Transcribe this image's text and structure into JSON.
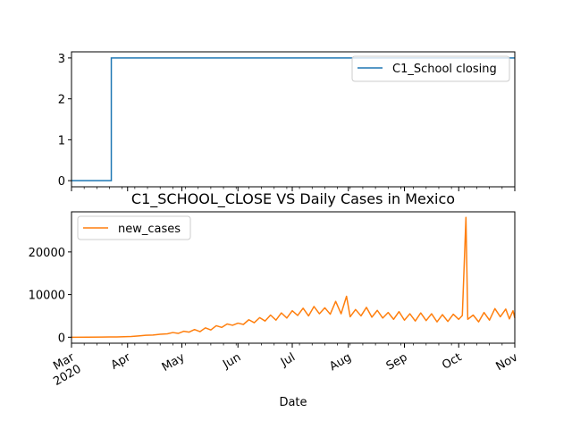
{
  "chart_data": [
    {
      "type": "line",
      "title": "",
      "xlabel": "",
      "ylabel": "",
      "xlim": [
        "2020-03-01",
        "2020-11-01"
      ],
      "ylim": [
        -0.15,
        3.15
      ],
      "yticks": [
        0,
        1,
        2,
        3
      ],
      "grid": false,
      "legend_position": "top-right",
      "series": [
        {
          "name": "C1_School closing",
          "color": "#1f77b4",
          "points": [
            [
              "2020-03-01",
              0
            ],
            [
              "2020-03-23",
              0
            ],
            [
              "2020-03-23",
              3
            ],
            [
              "2020-11-01",
              3
            ]
          ]
        }
      ]
    },
    {
      "type": "line",
      "title": "C1_SCHOOL_CLOSE VS Daily Cases in Mexico",
      "xlabel": "Date",
      "ylabel": "",
      "xlim": [
        "2020-03-01",
        "2020-11-01"
      ],
      "ylim": [
        -1400,
        29400
      ],
      "yticks": [
        0,
        10000,
        20000
      ],
      "ytick_labels": [
        "0",
        "10000",
        "20000"
      ],
      "xticks": [
        "2020-03-01",
        "2020-04-01",
        "2020-05-01",
        "2020-06-01",
        "2020-07-01",
        "2020-08-01",
        "2020-09-01",
        "2020-10-01",
        "2020-11-01"
      ],
      "xtick_labels": [
        "Mar\n2020",
        "Apr",
        "May",
        "Jun",
        "Jul",
        "Aug",
        "Sep",
        "Oct",
        "Nov"
      ],
      "grid": false,
      "legend_position": "top-left",
      "series": [
        {
          "name": "new_cases",
          "color": "#ff7f0e",
          "points": [
            [
              "2020-03-01",
              0
            ],
            [
              "2020-03-10",
              3
            ],
            [
              "2020-03-18",
              30
            ],
            [
              "2020-03-22",
              60
            ],
            [
              "2020-03-26",
              80
            ],
            [
              "2020-03-30",
              120
            ],
            [
              "2020-04-03",
              180
            ],
            [
              "2020-04-07",
              300
            ],
            [
              "2020-04-11",
              450
            ],
            [
              "2020-04-15",
              500
            ],
            [
              "2020-04-19",
              700
            ],
            [
              "2020-04-23",
              800
            ],
            [
              "2020-04-26",
              1100
            ],
            [
              "2020-04-29",
              900
            ],
            [
              "2020-05-02",
              1400
            ],
            [
              "2020-05-05",
              1200
            ],
            [
              "2020-05-08",
              1800
            ],
            [
              "2020-05-11",
              1300
            ],
            [
              "2020-05-14",
              2200
            ],
            [
              "2020-05-17",
              1700
            ],
            [
              "2020-05-20",
              2700
            ],
            [
              "2020-05-23",
              2300
            ],
            [
              "2020-05-26",
              3100
            ],
            [
              "2020-05-29",
              2800
            ],
            [
              "2020-06-01",
              3300
            ],
            [
              "2020-06-04",
              3000
            ],
            [
              "2020-06-07",
              4100
            ],
            [
              "2020-06-10",
              3400
            ],
            [
              "2020-06-13",
              4600
            ],
            [
              "2020-06-16",
              3800
            ],
            [
              "2020-06-19",
              5200
            ],
            [
              "2020-06-22",
              4000
            ],
            [
              "2020-06-25",
              5700
            ],
            [
              "2020-06-28",
              4500
            ],
            [
              "2020-07-01",
              6200
            ],
            [
              "2020-07-04",
              5100
            ],
            [
              "2020-07-07",
              6800
            ],
            [
              "2020-07-10",
              5000
            ],
            [
              "2020-07-13",
              7200
            ],
            [
              "2020-07-16",
              5500
            ],
            [
              "2020-07-19",
              6900
            ],
            [
              "2020-07-22",
              5400
            ],
            [
              "2020-07-25",
              8400
            ],
            [
              "2020-07-28",
              5500
            ],
            [
              "2020-07-31",
              9600
            ],
            [
              "2020-08-02",
              4800
            ],
            [
              "2020-08-05",
              6500
            ],
            [
              "2020-08-08",
              5000
            ],
            [
              "2020-08-11",
              7000
            ],
            [
              "2020-08-14",
              4700
            ],
            [
              "2020-08-17",
              6300
            ],
            [
              "2020-08-20",
              4500
            ],
            [
              "2020-08-23",
              5800
            ],
            [
              "2020-08-26",
              4200
            ],
            [
              "2020-08-29",
              6000
            ],
            [
              "2020-09-01",
              4000
            ],
            [
              "2020-09-04",
              5500
            ],
            [
              "2020-09-07",
              3800
            ],
            [
              "2020-09-10",
              5700
            ],
            [
              "2020-09-13",
              3900
            ],
            [
              "2020-09-16",
              5500
            ],
            [
              "2020-09-19",
              3600
            ],
            [
              "2020-09-22",
              5300
            ],
            [
              "2020-09-25",
              3700
            ],
            [
              "2020-09-28",
              5400
            ],
            [
              "2020-10-01",
              4200
            ],
            [
              "2020-10-03",
              5100
            ],
            [
              "2020-10-05",
              28100
            ],
            [
              "2020-10-06",
              4200
            ],
            [
              "2020-10-09",
              5200
            ],
            [
              "2020-10-12",
              3600
            ],
            [
              "2020-10-15",
              5800
            ],
            [
              "2020-10-18",
              4000
            ],
            [
              "2020-10-21",
              6700
            ],
            [
              "2020-10-24",
              4800
            ],
            [
              "2020-10-27",
              6600
            ],
            [
              "2020-10-29",
              4300
            ],
            [
              "2020-10-31",
              6200
            ],
            [
              "2020-11-01",
              4500
            ]
          ]
        }
      ]
    }
  ]
}
